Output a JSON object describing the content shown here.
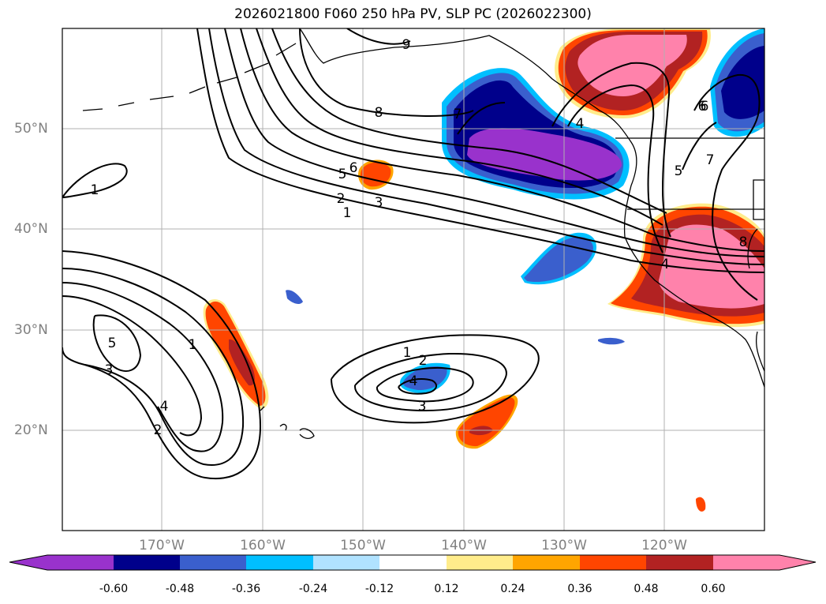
{
  "title": "2026021800 F060 250 hPa PV, SLP PC (2026022300)",
  "map": {
    "lat_labels": [
      "50°N",
      "40°N",
      "30°N",
      "20°N"
    ],
    "lon_labels": [
      "170°W",
      "160°W",
      "150°W",
      "140°W",
      "130°W",
      "120°W"
    ],
    "contour_labels": [
      "9",
      "8",
      "7",
      "6",
      "5",
      "6",
      "3",
      "2",
      "1",
      "1",
      "5",
      "3",
      "4",
      "2",
      "1",
      "1",
      "2",
      "4",
      "3",
      "4",
      "5",
      "6",
      "7",
      "8",
      "4",
      "6"
    ],
    "grid": true,
    "coastline_color": "#000000"
  },
  "colorbar": {
    "ticks": [
      "-0.60",
      "-0.48",
      "-0.36",
      "-0.24",
      "-0.12",
      "0.12",
      "0.24",
      "0.36",
      "0.48",
      "0.60"
    ],
    "colors": [
      "#9932CC",
      "#00008B",
      "#3A5FCD",
      "#00BFFF",
      "#B0E2FF",
      "#FFFFFF",
      "#FFEC8B",
      "#FFA500",
      "#FF4500",
      "#B22222",
      "#FF82AB"
    ]
  }
}
